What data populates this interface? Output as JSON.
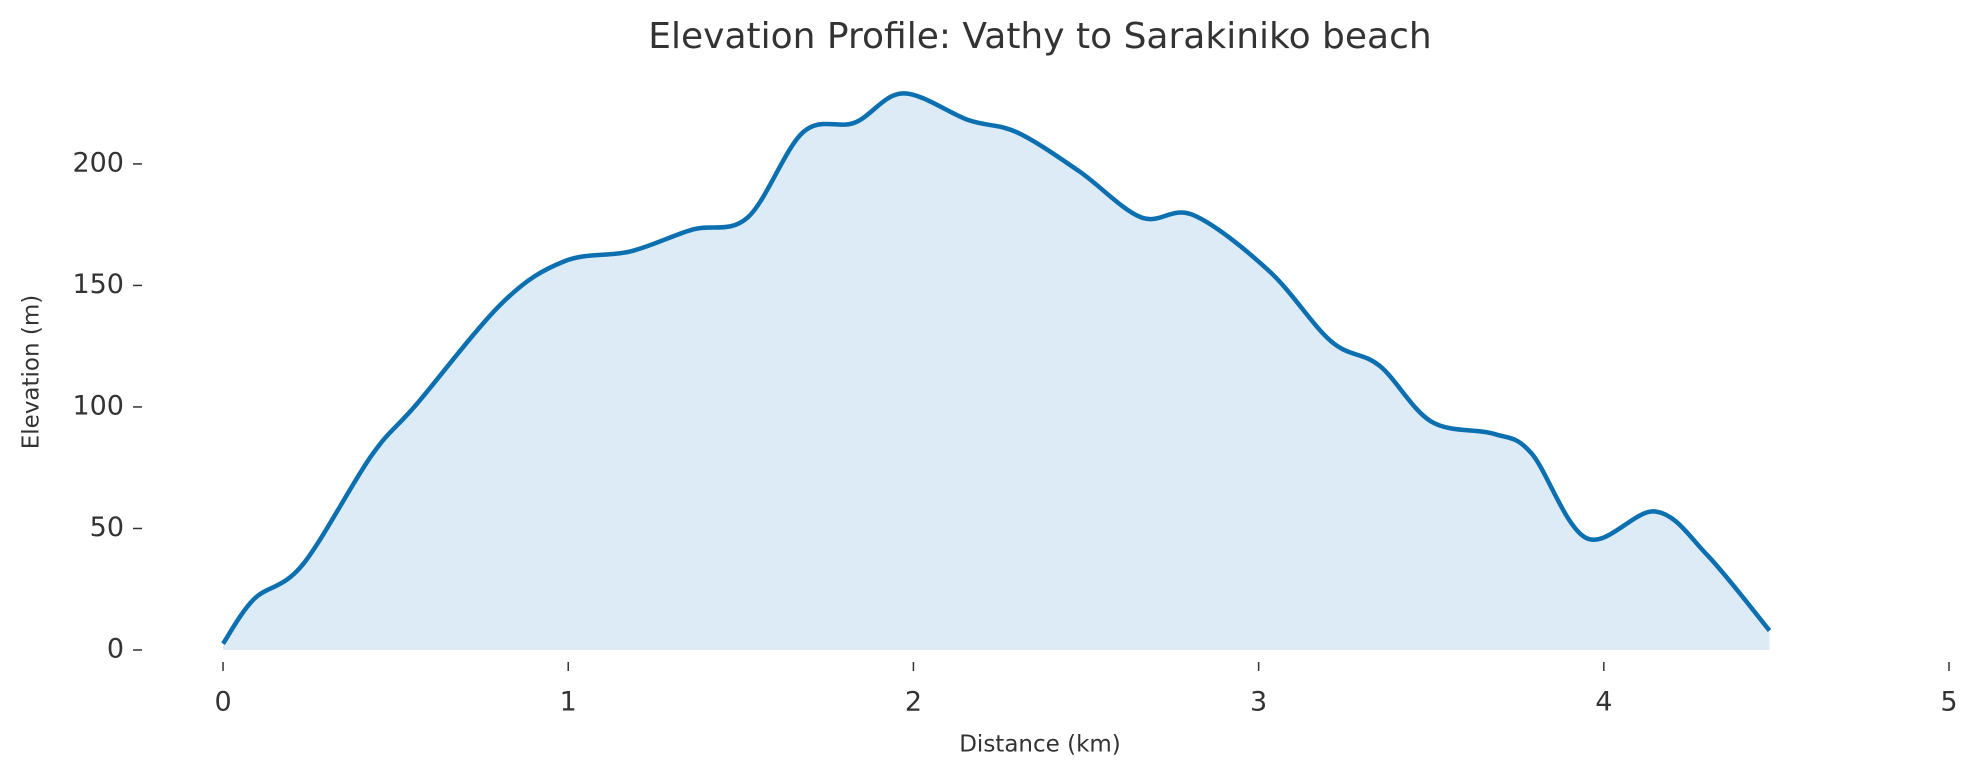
{
  "chart_data": {
    "type": "area",
    "title": "Elevation Profile: Vathy to Sarakiniko beach",
    "x_label": "Distance (km)",
    "y_label": "Elevation (m)",
    "x": [
      0,
      0.09,
      0.23,
      0.43,
      0.56,
      0.81,
      0.99,
      1.18,
      1.36,
      1.52,
      1.68,
      1.83,
      1.97,
      2.16,
      2.3,
      2.48,
      2.66,
      2.81,
      3.03,
      3.21,
      3.35,
      3.5,
      3.68,
      3.79,
      3.95,
      4.15,
      4.3,
      4.48
    ],
    "series": [
      {
        "color": "#0b6fb0",
        "fill": "#ddebf7",
        "values": [
          2.6,
          21,
          35,
          80,
          101,
          143,
          160,
          164,
          173,
          178,
          213,
          217,
          229,
          218,
          213,
          197,
          178,
          179,
          156,
          127,
          117,
          94,
          89,
          81,
          46,
          57,
          39,
          8
        ]
      }
    ],
    "xlim": [
      -0.2,
      5
    ],
    "xticks": [
      0,
      1,
      2,
      3,
      4,
      5
    ],
    "ylim": [
      0,
      230
    ],
    "yticks": [
      0,
      50,
      100,
      150,
      200
    ]
  }
}
